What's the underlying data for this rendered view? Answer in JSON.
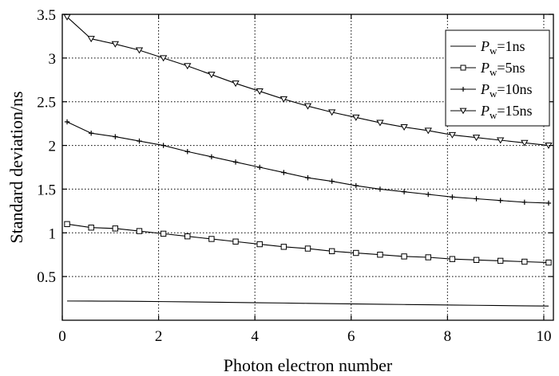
{
  "chart_data": {
    "type": "line",
    "xlabel": "Photon electron number",
    "ylabel": "Standard deviation/ns",
    "xlim": [
      0,
      10.2
    ],
    "ylim": [
      0,
      3.5
    ],
    "xticks": [
      "0",
      "2",
      "4",
      "6",
      "8",
      "10"
    ],
    "yticks": [
      "0.5",
      "1",
      "1.5",
      "2",
      "2.5",
      "3",
      "3.5"
    ],
    "grid": true,
    "legend_position": "top-right",
    "x": [
      0.1,
      0.6,
      1.1,
      1.6,
      2.1,
      2.6,
      3.1,
      3.6,
      4.1,
      4.6,
      5.1,
      5.6,
      6.1,
      6.6,
      7.1,
      7.6,
      8.1,
      8.6,
      9.1,
      9.6,
      10.1
    ],
    "series": [
      {
        "name": "1ns",
        "legend_symbol": "P",
        "legend_subscript": "w",
        "marker": "none",
        "values": [
          0.22,
          0.219,
          0.218,
          0.216,
          0.213,
          0.21,
          0.207,
          0.203,
          0.2,
          0.197,
          0.193,
          0.19,
          0.186,
          0.183,
          0.18,
          0.177,
          0.174,
          0.171,
          0.168,
          0.165,
          0.162
        ]
      },
      {
        "name": "5ns",
        "legend_symbol": "P",
        "legend_subscript": "w",
        "marker": "square",
        "values": [
          1.1,
          1.06,
          1.05,
          1.02,
          0.99,
          0.96,
          0.93,
          0.9,
          0.87,
          0.84,
          0.82,
          0.79,
          0.77,
          0.75,
          0.73,
          0.72,
          0.7,
          0.69,
          0.68,
          0.67,
          0.66
        ]
      },
      {
        "name": "10ns",
        "legend_symbol": "P",
        "legend_subscript": "w",
        "marker": "plus",
        "values": [
          2.27,
          2.14,
          2.1,
          2.05,
          2.0,
          1.93,
          1.87,
          1.81,
          1.75,
          1.69,
          1.63,
          1.59,
          1.54,
          1.5,
          1.47,
          1.44,
          1.41,
          1.39,
          1.37,
          1.35,
          1.34
        ]
      },
      {
        "name": "15ns",
        "legend_symbol": "P",
        "legend_subscript": "w",
        "marker": "triangle-down",
        "values": [
          3.47,
          3.22,
          3.16,
          3.09,
          3.0,
          2.91,
          2.81,
          2.71,
          2.62,
          2.53,
          2.45,
          2.38,
          2.32,
          2.26,
          2.21,
          2.17,
          2.12,
          2.09,
          2.06,
          2.03,
          2.0
        ]
      }
    ]
  }
}
